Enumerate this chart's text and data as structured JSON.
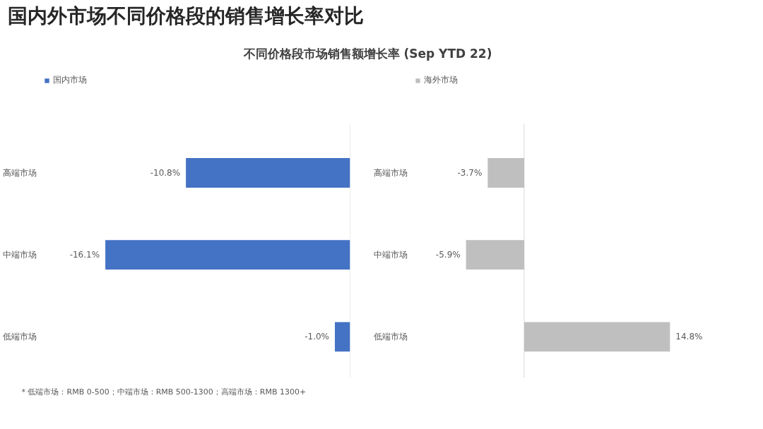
{
  "chart_data": [
    {
      "type": "bar",
      "orientation": "horizontal",
      "title": "国内外市场不同价格段的销售增长率对比",
      "subtitle": "不同价格段市场销售额增长率 (Sep YTD 22)",
      "categories": [
        "高端市场",
        "中端市场",
        "低端市场"
      ],
      "series": [
        {
          "name": "国内市场",
          "color": "#4472c4",
          "values": [
            -10.8,
            -16.1,
            -1.0
          ],
          "value_labels": [
            "-10.8%",
            "-16.1%",
            "-1.0%"
          ]
        }
      ],
      "tick_labels": "y",
      "legend": "top left",
      "grid": false,
      "annotations": [
        "* 低端市场：RMB 0-500；中端市场：RMB 500-1300；高端市场：RMB 1300+"
      ]
    },
    {
      "type": "bar",
      "orientation": "horizontal",
      "categories": [
        "高端市场",
        "中端市场",
        "低端市场"
      ],
      "series": [
        {
          "name": "海外市场",
          "color": "#bfbfbf",
          "values": [
            -3.7,
            -5.9,
            14.8
          ],
          "value_labels": [
            "-3.7%",
            "-5.9%",
            "14.8%"
          ]
        }
      ],
      "tick_labels": "y",
      "legend": "top left",
      "grid": false
    }
  ]
}
